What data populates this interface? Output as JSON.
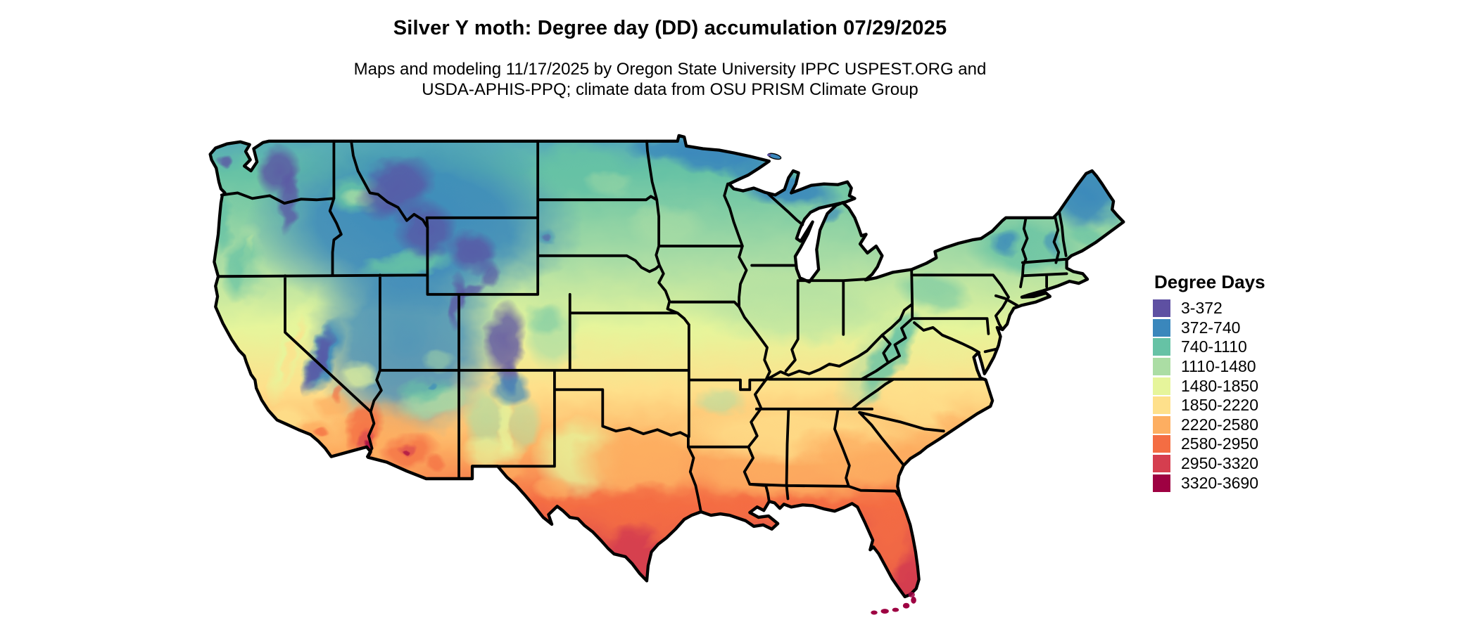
{
  "header": {
    "title": "Silver Y moth: Degree day (DD) accumulation 07/29/2025",
    "subtitle_line1": "Maps and modeling 11/17/2025 by Oregon State University IPPC USPEST.ORG and",
    "subtitle_line2": "USDA-APHIS-PPQ; climate data from OSU PRISM Climate Group"
  },
  "legend": {
    "title": "Degree Days",
    "entries": [
      {
        "label": "3-372",
        "color": "#5e50a2"
      },
      {
        "label": "372-740",
        "color": "#3a87bc"
      },
      {
        "label": "740-1110",
        "color": "#66c2a5"
      },
      {
        "label": "1110-1480",
        "color": "#abdda4"
      },
      {
        "label": "1480-1850",
        "color": "#e6f59b"
      },
      {
        "label": "1850-2220",
        "color": "#fee08b"
      },
      {
        "label": "2220-2580",
        "color": "#fdae61"
      },
      {
        "label": "2580-2950",
        "color": "#f46d43"
      },
      {
        "label": "2950-3320",
        "color": "#d53e4f"
      },
      {
        "label": "3320-3690",
        "color": "#9e0142"
      }
    ]
  },
  "chart_data": {
    "type": "heatmap",
    "subtype": "us-choropleth-degree-day-map",
    "title": "Silver Y moth: Degree day (DD) accumulation 07/29/2025",
    "legend_title": "Degree Days",
    "legend_position": "right",
    "bins": [
      {
        "range": "3-372",
        "color": "#5e50a2"
      },
      {
        "range": "372-740",
        "color": "#3a87bc"
      },
      {
        "range": "740-1110",
        "color": "#66c2a5"
      },
      {
        "range": "1110-1480",
        "color": "#abdda4"
      },
      {
        "range": "1480-1850",
        "color": "#e6f59b"
      },
      {
        "range": "1850-2220",
        "color": "#fee08b"
      },
      {
        "range": "2220-2580",
        "color": "#fdae61"
      },
      {
        "range": "2580-2950",
        "color": "#f46d43"
      },
      {
        "range": "2950-3320",
        "color": "#d53e4f"
      },
      {
        "range": "3320-3690",
        "color": "#9e0142"
      }
    ]
  }
}
